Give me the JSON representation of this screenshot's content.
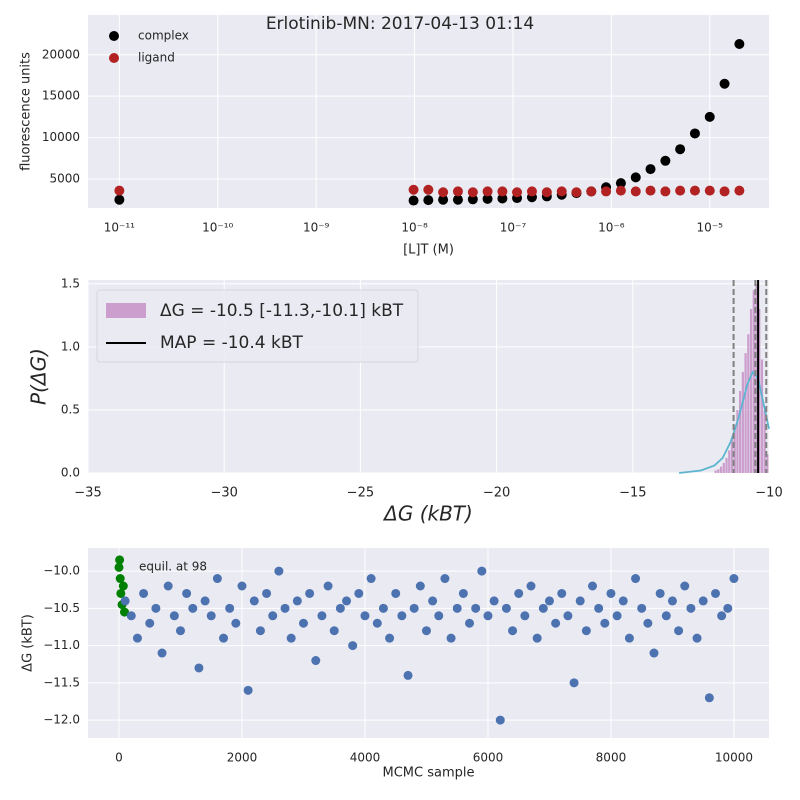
{
  "chart_data": [
    {
      "type": "scatter",
      "title": "Erlotinib-MN: 2017-04-13 01:14",
      "xlabel": "[L]T (M)",
      "ylabel": "fluorescence units",
      "xscale": "log",
      "grid": true,
      "legend": "upper left",
      "x": [
        1e-11,
        9.77e-09,
        1.38e-08,
        1.95e-08,
        2.76e-08,
        3.91e-08,
        5.52e-08,
        7.81e-08,
        1.1e-07,
        1.56e-07,
        2.21e-07,
        3.13e-07,
        4.42e-07,
        6.25e-07,
        8.84e-07,
        1.25e-06,
        1.77e-06,
        2.5e-06,
        3.54e-06,
        5e-06,
        7.07e-06,
        1e-05,
        1.414e-05,
        2e-05
      ],
      "series": [
        {
          "name": "complex",
          "color": "#000000",
          "values": [
            2500,
            2400,
            2450,
            2500,
            2500,
            2550,
            2600,
            2650,
            2700,
            2800,
            2900,
            3100,
            3300,
            3500,
            4000,
            4500,
            5200,
            6200,
            7200,
            8600,
            10500,
            12500,
            16500,
            21300
          ]
        },
        {
          "name": "ligand",
          "color": "#b22222",
          "values": [
            3600,
            3700,
            3700,
            3400,
            3500,
            3400,
            3500,
            3500,
            3400,
            3500,
            3400,
            3500,
            3400,
            3500,
            3500,
            3600,
            3500,
            3600,
            3500,
            3600,
            3600,
            3600,
            3500,
            3600
          ]
        }
      ],
      "xlim": [
        4.8e-12,
        4e-05
      ],
      "xticks": [
        {
          "value": 1e-11,
          "label": "10⁻¹¹"
        },
        {
          "value": 1e-10,
          "label": "10⁻¹⁰"
        },
        {
          "value": 1e-09,
          "label": "10⁻⁹"
        },
        {
          "value": 1e-08,
          "label": "10⁻⁸"
        },
        {
          "value": 1e-07,
          "label": "10⁻⁷"
        },
        {
          "value": 1e-06,
          "label": "10⁻⁶"
        },
        {
          "value": 1e-05,
          "label": "10⁻⁵"
        }
      ],
      "ylim": [
        1500,
        24800
      ],
      "yticks": [
        5000,
        10000,
        15000,
        20000
      ]
    },
    {
      "type": "histogram",
      "xlabel": "ΔG (kBT)",
      "ylabel": "P(ΔG)",
      "grid": true,
      "legend": "upper left",
      "histogram": {
        "name": "ΔG =  -10.5 [-11.3,-10.1] kBT",
        "color": "#c084c0",
        "bins": [
          -12.0,
          -11.9,
          -11.8,
          -11.7,
          -11.6,
          -11.5,
          -11.4,
          -11.3,
          -11.2,
          -11.1,
          -11.0,
          -10.9,
          -10.8,
          -10.7,
          -10.6,
          -10.5,
          -10.4,
          -10.3,
          -10.2,
          -10.1,
          -10.0
        ],
        "values": [
          0.02,
          0.03,
          0.05,
          0.08,
          0.12,
          0.18,
          0.27,
          0.38,
          0.5,
          0.65,
          0.8,
          0.95,
          1.1,
          1.3,
          1.45,
          1.5,
          1.3,
          0.9,
          0.5,
          0.15
        ]
      },
      "kde": {
        "color": "#5bb5d0",
        "x": [
          -13.3,
          -12.5,
          -12.0,
          -11.7,
          -11.4,
          -11.1,
          -10.8,
          -10.6,
          -10.4,
          -10.2,
          -10.0
        ],
        "y": [
          0,
          0.02,
          0.06,
          0.12,
          0.25,
          0.45,
          0.7,
          0.8,
          0.75,
          0.55,
          0.35
        ]
      },
      "vlines": [
        {
          "value": -11.3,
          "color": "#808080",
          "dashed": true
        },
        {
          "value": -10.5,
          "color": "#808080",
          "dashed": true
        },
        {
          "value": -10.1,
          "color": "#808080",
          "dashed": true
        },
        {
          "name": "MAP = -10.4 kBT",
          "value": -10.4,
          "color": "#000000",
          "dashed": false
        }
      ],
      "xlim": [
        -35,
        -10
      ],
      "xticks": [
        {
          "value": -35,
          "label": "−35"
        },
        {
          "value": -30,
          "label": "−30"
        },
        {
          "value": -25,
          "label": "−25"
        },
        {
          "value": -20,
          "label": "−20"
        },
        {
          "value": -15,
          "label": "−15"
        },
        {
          "value": -10,
          "label": "−10"
        }
      ],
      "ylim": [
        0,
        1.53
      ],
      "yticks": [
        {
          "value": 0,
          "label": "0.0"
        },
        0.5,
        {
          "value": 1,
          "label": "1.0"
        },
        1.5
      ]
    },
    {
      "type": "scatter",
      "xlabel": "MCMC sample",
      "ylabel": "ΔG (kBT)",
      "grid": true,
      "annotation": "equil. at 98",
      "series": [
        {
          "color": "#008000",
          "x": [
            0,
            10,
            20,
            30,
            50,
            70,
            90
          ],
          "values": [
            -9.95,
            -9.85,
            -10.1,
            -10.3,
            -10.45,
            -10.2,
            -10.55
          ]
        },
        {
          "color": "#4c72b0",
          "x": [
            100,
            200,
            300,
            400,
            500,
            600,
            700,
            800,
            900,
            1000,
            1100,
            1200,
            1300,
            1400,
            1500,
            1600,
            1700,
            1800,
            1900,
            2000,
            2100,
            2200,
            2300,
            2400,
            2500,
            2600,
            2700,
            2800,
            2900,
            3000,
            3100,
            3200,
            3300,
            3400,
            3500,
            3600,
            3700,
            3800,
            3900,
            4000,
            4100,
            4200,
            4300,
            4400,
            4500,
            4600,
            4700,
            4800,
            4900,
            5000,
            5100,
            5200,
            5300,
            5400,
            5500,
            5600,
            5700,
            5800,
            5900,
            6000,
            6100,
            6200,
            6300,
            6400,
            6500,
            6600,
            6700,
            6800,
            6900,
            7000,
            7100,
            7200,
            7300,
            7400,
            7500,
            7600,
            7700,
            7800,
            7900,
            8000,
            8100,
            8200,
            8300,
            8400,
            8500,
            8600,
            8700,
            8800,
            8900,
            9000,
            9100,
            9200,
            9300,
            9400,
            9500,
            9600,
            9700,
            9800,
            9900,
            10000
          ],
          "values": [
            -10.4,
            -10.6,
            -10.9,
            -10.3,
            -10.7,
            -10.5,
            -11.1,
            -10.2,
            -10.6,
            -10.8,
            -10.3,
            -10.5,
            -11.3,
            -10.4,
            -10.6,
            -10.1,
            -10.9,
            -10.5,
            -10.7,
            -10.2,
            -11.6,
            -10.4,
            -10.8,
            -10.3,
            -10.6,
            -10.0,
            -10.5,
            -10.9,
            -10.4,
            -10.7,
            -10.3,
            -11.2,
            -10.6,
            -10.2,
            -10.8,
            -10.5,
            -10.4,
            -11.0,
            -10.3,
            -10.6,
            -10.1,
            -10.7,
            -10.5,
            -10.9,
            -10.3,
            -10.6,
            -11.4,
            -10.5,
            -10.2,
            -10.8,
            -10.4,
            -10.6,
            -10.1,
            -10.9,
            -10.5,
            -10.3,
            -10.7,
            -10.5,
            -10.0,
            -10.6,
            -10.4,
            -12.0,
            -10.5,
            -10.8,
            -10.3,
            -10.6,
            -10.2,
            -10.9,
            -10.5,
            -10.4,
            -10.7,
            -10.3,
            -10.6,
            -11.5,
            -10.4,
            -10.8,
            -10.2,
            -10.5,
            -10.7,
            -10.3,
            -10.6,
            -10.4,
            -10.9,
            -10.1,
            -10.5,
            -10.7,
            -11.1,
            -10.3,
            -10.6,
            -10.4,
            -10.8,
            -10.2,
            -10.5,
            -10.9,
            -10.4,
            -11.7,
            -10.3,
            -10.6,
            -10.5,
            -10.1
          ]
        }
      ],
      "xlim": [
        -504,
        10570
      ],
      "xticks": [
        0,
        2000,
        4000,
        6000,
        8000,
        10000
      ],
      "ylim": [
        -12.24,
        -9.69
      ],
      "yticks": [
        {
          "value": -12,
          "label": "−12.0"
        },
        {
          "value": -11.5,
          "label": "−11.5"
        },
        {
          "value": -11,
          "label": "−11.0"
        },
        {
          "value": -10.5,
          "label": "−10.5"
        },
        {
          "value": -10,
          "label": "−10.0"
        }
      ]
    }
  ]
}
